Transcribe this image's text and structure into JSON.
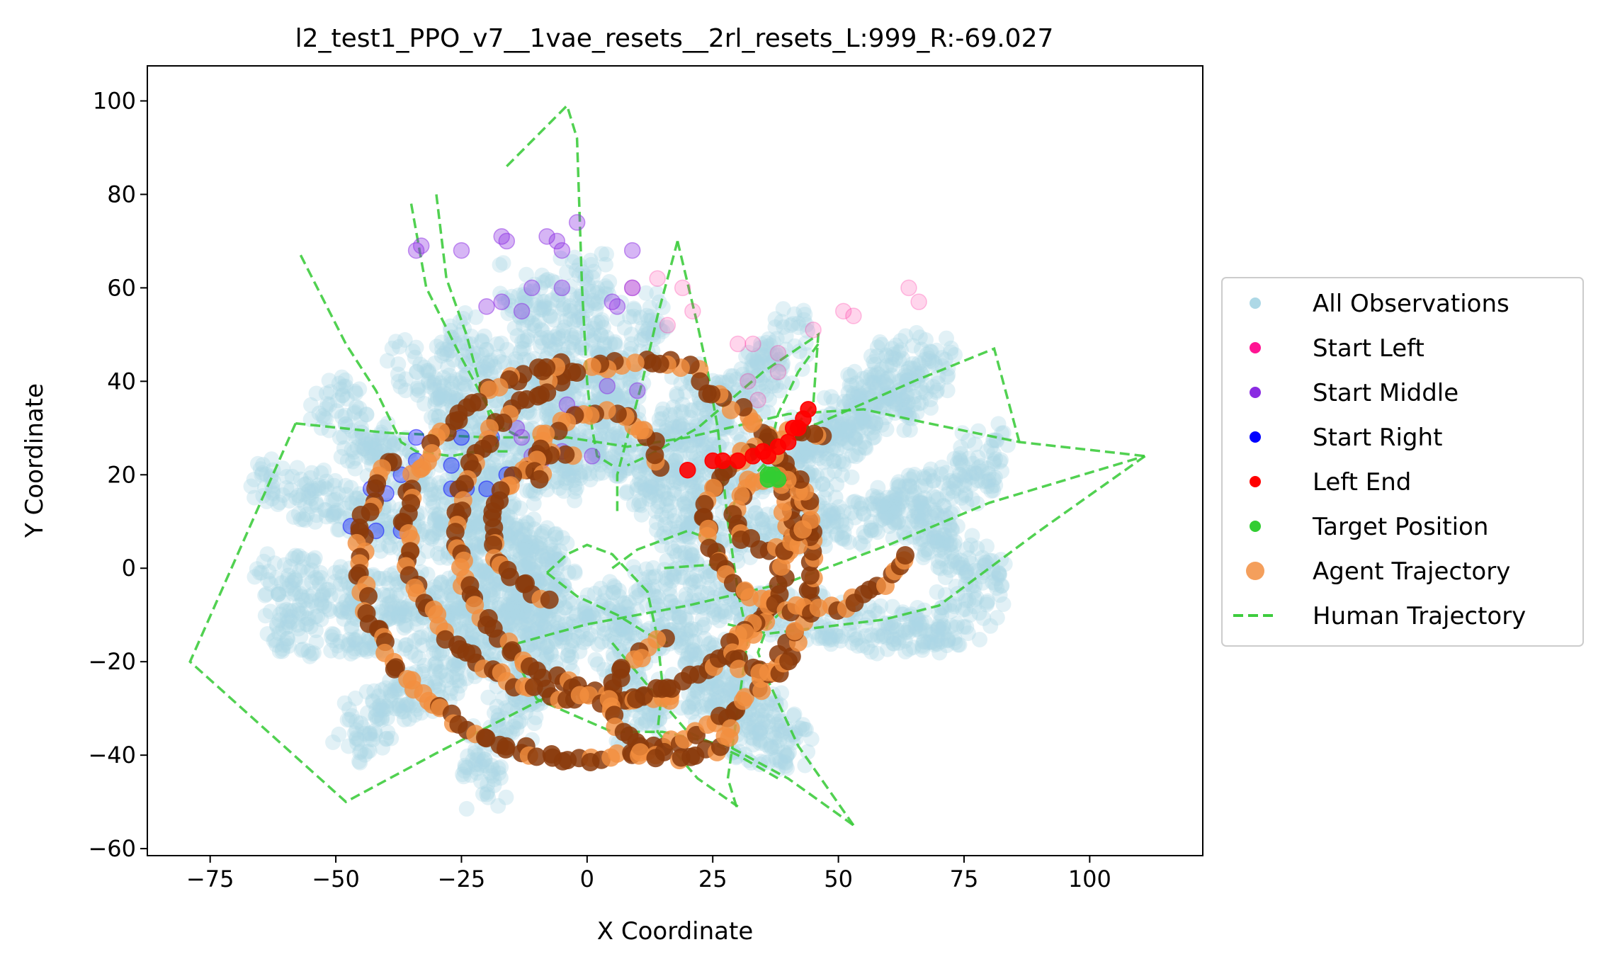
{
  "chart_data": {
    "type": "scatter",
    "title": "l2_test1_PPO_v7__1vae_resets__2rl_resets_L:999_R:-69.027",
    "xlabel": "X Coordinate",
    "ylabel": "Y Coordinate",
    "xlim": [
      -87.5,
      122.5
    ],
    "ylim": [
      -61.5,
      107.5
    ],
    "xticks": [
      -75,
      -50,
      -25,
      0,
      25,
      50,
      75,
      100
    ],
    "yticks": [
      -60,
      -40,
      -20,
      0,
      20,
      40,
      60,
      80,
      100
    ],
    "xtick_labels": [
      "−75",
      "−50",
      "−25",
      "0",
      "25",
      "50",
      "75",
      "100"
    ],
    "ytick_labels": [
      "−60",
      "−40",
      "−20",
      "0",
      "20",
      "40",
      "60",
      "80",
      "100"
    ],
    "grid": false,
    "legend_position": "center-right outside",
    "legend": [
      {
        "label": "All Observations",
        "color": "#add8e6",
        "marker": "dot"
      },
      {
        "label": "Start Left",
        "color": "#ff1493",
        "marker": "dot"
      },
      {
        "label": "Start Middle",
        "color": "#8a2be2",
        "marker": "dot"
      },
      {
        "label": "Start Right",
        "color": "#0000ff",
        "marker": "dot"
      },
      {
        "label": "Left End",
        "color": "#ff0000",
        "marker": "dot"
      },
      {
        "label": "Target Position",
        "color": "#32cd32",
        "marker": "dot"
      },
      {
        "label": "Agent Trajectory",
        "color": "#f28e3f",
        "marker": "dot-large"
      },
      {
        "label": "Human Trajectory",
        "color": "#3ecc3e",
        "marker": "dashed-line"
      }
    ],
    "observation_arms": [
      [
        [
          -5,
          2
        ],
        [
          -20,
          10
        ],
        [
          -42,
          25
        ],
        [
          -52,
          38
        ]
      ],
      [
        [
          -6,
          0
        ],
        [
          -25,
          5
        ],
        [
          -48,
          12
        ],
        [
          -64,
          20
        ]
      ],
      [
        [
          -6,
          -3
        ],
        [
          -28,
          -6
        ],
        [
          -46,
          -6
        ],
        [
          -64,
          -1
        ]
      ],
      [
        [
          -5,
          -6
        ],
        [
          -25,
          -12
        ],
        [
          -45,
          -14
        ],
        [
          -62,
          -13
        ]
      ],
      [
        [
          -5,
          -9
        ],
        [
          -22,
          -20
        ],
        [
          -38,
          -28
        ],
        [
          -48,
          -38
        ]
      ],
      [
        [
          -2,
          -10
        ],
        [
          -12,
          -26
        ],
        [
          -20,
          -40
        ],
        [
          -20,
          -48
        ]
      ],
      [
        [
          -20,
          12
        ],
        [
          -25,
          28
        ],
        [
          -30,
          40
        ],
        [
          -36,
          46
        ]
      ],
      [
        [
          -14,
          15
        ],
        [
          -18,
          32
        ],
        [
          -20,
          45
        ],
        [
          -25,
          51
        ]
      ],
      [
        [
          -6,
          18
        ],
        [
          -8,
          40
        ],
        [
          -10,
          55
        ],
        [
          -14,
          62
        ]
      ],
      [
        [
          -2,
          20
        ],
        [
          0,
          42
        ],
        [
          -2,
          55
        ],
        [
          0,
          65
        ]
      ],
      [
        [
          4,
          20
        ],
        [
          6,
          38
        ],
        [
          10,
          50
        ],
        [
          12,
          55
        ]
      ],
      [
        [
          8,
          18
        ],
        [
          18,
          30
        ],
        [
          25,
          40
        ]
      ],
      [
        [
          12,
          15
        ],
        [
          25,
          28
        ],
        [
          35,
          42
        ],
        [
          42,
          52
        ]
      ],
      [
        [
          16,
          10
        ],
        [
          32,
          20
        ],
        [
          48,
          30
        ],
        [
          58,
          40
        ],
        [
          66,
          48
        ]
      ],
      [
        [
          18,
          5
        ],
        [
          40,
          8
        ],
        [
          60,
          12
        ],
        [
          78,
          20
        ],
        [
          80,
          28
        ]
      ],
      [
        [
          12,
          -2
        ],
        [
          32,
          -8
        ],
        [
          52,
          -12
        ],
        [
          70,
          -14
        ],
        [
          80,
          -3
        ]
      ],
      [
        [
          6,
          -6
        ],
        [
          20,
          -16
        ],
        [
          32,
          -28
        ],
        [
          42,
          -40
        ]
      ],
      [
        [
          2,
          -8
        ],
        [
          8,
          -20
        ],
        [
          12,
          -30
        ],
        [
          10,
          -36
        ]
      ],
      [
        [
          20,
          -26
        ],
        [
          30,
          -30
        ],
        [
          36,
          -40
        ]
      ],
      [
        [
          60,
          16
        ],
        [
          70,
          6
        ],
        [
          80,
          -2
        ]
      ],
      [
        [
          45,
          20
        ],
        [
          55,
          30
        ],
        [
          65,
          38
        ],
        [
          70,
          46
        ]
      ]
    ],
    "start_left": [
      [
        9,
        60
      ],
      [
        14,
        62
      ],
      [
        19,
        60
      ],
      [
        21,
        55
      ],
      [
        30,
        48
      ],
      [
        33,
        48
      ],
      [
        38,
        46
      ],
      [
        38,
        42
      ],
      [
        45,
        51
      ],
      [
        51,
        55
      ],
      [
        53,
        54
      ],
      [
        64,
        60
      ],
      [
        66,
        57
      ],
      [
        16,
        52
      ],
      [
        32,
        40
      ],
      [
        34,
        36
      ]
    ],
    "start_middle": [
      [
        -34,
        68
      ],
      [
        -33,
        69
      ],
      [
        -25,
        68
      ],
      [
        -17,
        71
      ],
      [
        -16,
        70
      ],
      [
        -8,
        71
      ],
      [
        -6,
        70
      ],
      [
        -5,
        68
      ],
      [
        -2,
        74
      ],
      [
        -20,
        56
      ],
      [
        -17,
        57
      ],
      [
        -11,
        60
      ],
      [
        -5,
        60
      ],
      [
        5,
        57
      ],
      [
        9,
        60
      ],
      [
        9,
        68
      ],
      [
        6,
        56
      ],
      [
        -13,
        55
      ],
      [
        -4,
        35
      ],
      [
        -2,
        33
      ],
      [
        -5,
        25
      ],
      [
        -9,
        23
      ],
      [
        -11,
        24
      ],
      [
        -13,
        28
      ],
      [
        1,
        24
      ],
      [
        -14,
        30
      ],
      [
        10,
        38
      ],
      [
        4,
        39
      ]
    ],
    "start_right": [
      [
        -34,
        28
      ],
      [
        -34,
        23
      ],
      [
        -37,
        20
      ],
      [
        -40,
        16
      ],
      [
        -37,
        8
      ],
      [
        -42,
        8
      ],
      [
        -27,
        17
      ],
      [
        -24,
        17
      ],
      [
        -20,
        17
      ],
      [
        -16,
        20
      ],
      [
        -27,
        22
      ],
      [
        -25,
        28
      ],
      [
        -19,
        28
      ],
      [
        -43,
        17
      ],
      [
        -47,
        9
      ]
    ],
    "left_end": [
      [
        20,
        21
      ],
      [
        25,
        23
      ],
      [
        27,
        23
      ],
      [
        30,
        23
      ],
      [
        33,
        24
      ],
      [
        35,
        25
      ],
      [
        38,
        26
      ],
      [
        40,
        27
      ],
      [
        42,
        30
      ],
      [
        43,
        32
      ],
      [
        44,
        34
      ],
      [
        41,
        30
      ],
      [
        36,
        24
      ]
    ],
    "target_position": [
      [
        36,
        20
      ],
      [
        37,
        20
      ],
      [
        38,
        19
      ],
      [
        36,
        19
      ]
    ],
    "agent_trajectory": [
      {
        "center": [
          12,
          8
        ],
        "radius": 38,
        "from_deg": 75,
        "to_deg": 278
      },
      {
        "center": [
          -2,
          9
        ],
        "radius": 17,
        "from_deg": 95,
        "to_deg": 250
      },
      {
        "center": [
          2,
          8
        ],
        "radius": 38,
        "from_deg": 100,
        "to_deg": 15
      },
      {
        "center": [
          0,
          2
        ],
        "radius": 45,
        "from_deg": 150,
        "to_deg": 60
      },
      {
        "center": [
          37,
          12
        ],
        "radius": 8,
        "from_deg": 20,
        "to_deg": 340
      },
      {
        "center": [
          35,
          -17
        ],
        "radius": 6,
        "from_deg": 80,
        "to_deg": 330
      },
      {
        "center": [
          18,
          -28
        ],
        "radius": 13,
        "from_deg": 100,
        "to_deg": 330
      },
      {
        "center": [
          2,
          22
        ],
        "radius": 12,
        "from_deg": 0,
        "to_deg": 200
      },
      {
        "center": [
          44,
          10
        ],
        "radius": 20,
        "from_deg": 80,
        "to_deg": -20
      }
    ],
    "human_trajectories": [
      [
        [
          -58,
          31
        ],
        [
          -40,
          29
        ],
        [
          -20,
          28
        ],
        [
          -4,
          28
        ],
        [
          8,
          26
        ],
        [
          20,
          28
        ],
        [
          40,
          33
        ],
        [
          55,
          34
        ],
        [
          68,
          31
        ],
        [
          86,
          27
        ],
        [
          111,
          24
        ]
      ],
      [
        [
          -58,
          31
        ],
        [
          -79,
          -20
        ],
        [
          -48,
          -50
        ],
        [
          -29,
          -39
        ],
        [
          -7,
          -27
        ]
      ],
      [
        [
          -57,
          67
        ],
        [
          -48,
          48
        ],
        [
          -42,
          38
        ],
        [
          -37,
          27
        ],
        [
          -34,
          25
        ],
        [
          -27,
          24
        ],
        [
          -22,
          25
        ],
        [
          -15,
          25
        ]
      ],
      [
        [
          -35,
          78
        ],
        [
          -32,
          60
        ],
        [
          -25,
          45
        ],
        [
          -20,
          35
        ],
        [
          -17,
          30
        ],
        [
          -13,
          28
        ]
      ],
      [
        [
          -30,
          80
        ],
        [
          -28,
          62
        ],
        [
          -24,
          50
        ],
        [
          -22,
          42
        ],
        [
          -20,
          35
        ],
        [
          -18,
          26
        ]
      ],
      [
        [
          -16,
          86
        ],
        [
          -4,
          99
        ],
        [
          -2,
          92
        ],
        [
          -1,
          60
        ],
        [
          0,
          40
        ],
        [
          1,
          30
        ],
        [
          2,
          24
        ],
        [
          5,
          22
        ]
      ],
      [
        [
          18,
          70
        ],
        [
          14,
          54
        ],
        [
          11,
          40
        ],
        [
          8,
          28
        ],
        [
          6,
          20
        ],
        [
          6,
          12
        ]
      ],
      [
        [
          -8,
          -1
        ],
        [
          -4,
          3
        ],
        [
          0,
          5
        ],
        [
          5,
          3
        ],
        [
          12,
          -5
        ],
        [
          14,
          -15
        ],
        [
          15,
          -25
        ],
        [
          14,
          -35
        ],
        [
          22,
          -45
        ],
        [
          30,
          -51
        ]
      ],
      [
        [
          18,
          70
        ],
        [
          22,
          52
        ],
        [
          24,
          42
        ],
        [
          26,
          30
        ],
        [
          28,
          10
        ],
        [
          30,
          -5
        ],
        [
          32,
          -15
        ],
        [
          30,
          -30
        ],
        [
          28,
          -45
        ],
        [
          30,
          -52
        ]
      ],
      [
        [
          -17,
          -17
        ],
        [
          0,
          -12
        ],
        [
          20,
          -8
        ],
        [
          40,
          -3
        ],
        [
          60,
          5
        ],
        [
          80,
          14
        ],
        [
          111,
          24
        ]
      ],
      [
        [
          111,
          24
        ],
        [
          90,
          8
        ],
        [
          70,
          -8
        ],
        [
          59,
          -11
        ],
        [
          36,
          -14
        ],
        [
          28,
          -12
        ]
      ],
      [
        [
          -16,
          -16
        ],
        [
          -10,
          -28
        ],
        [
          5,
          -35
        ],
        [
          15,
          -35
        ],
        [
          28,
          -38
        ],
        [
          40,
          -45
        ],
        [
          53,
          -55
        ]
      ],
      [
        [
          5,
          -16
        ],
        [
          12,
          -25
        ],
        [
          20,
          -35
        ],
        [
          30,
          -40
        ],
        [
          38,
          -45
        ]
      ],
      [
        [
          5,
          0
        ],
        [
          10,
          4
        ],
        [
          20,
          8
        ],
        [
          25,
          6
        ],
        [
          28,
          1
        ],
        [
          15,
          0
        ]
      ],
      [
        [
          28,
          10
        ],
        [
          30,
          16
        ],
        [
          35,
          22
        ],
        [
          45,
          35
        ],
        [
          46,
          50
        ],
        [
          35,
          42
        ],
        [
          22,
          30
        ],
        [
          12,
          24
        ],
        [
          8,
          22
        ]
      ],
      [
        [
          35,
          20
        ],
        [
          36,
          24
        ],
        [
          38,
          33
        ],
        [
          42,
          42
        ],
        [
          46,
          48
        ]
      ],
      [
        [
          -8,
          -1
        ],
        [
          -2,
          -6
        ],
        [
          6,
          -10
        ],
        [
          12,
          -14
        ],
        [
          16,
          -16
        ]
      ],
      [
        [
          53,
          -55
        ],
        [
          42,
          -38
        ],
        [
          36,
          -24
        ],
        [
          34,
          -18
        ],
        [
          36,
          -12
        ],
        [
          40,
          -8
        ]
      ],
      [
        [
          86,
          27
        ],
        [
          81,
          47
        ],
        [
          65,
          40
        ],
        [
          46,
          31
        ],
        [
          40,
          29
        ]
      ]
    ]
  }
}
